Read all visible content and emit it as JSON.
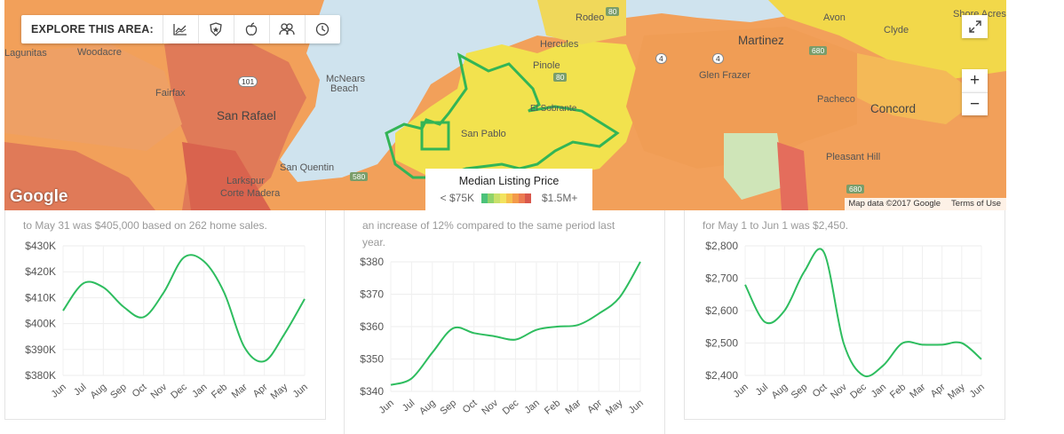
{
  "explore": {
    "label": "EXPLORE THIS AREA:",
    "icons": [
      "chart-icon",
      "police-badge-icon",
      "apple-icon",
      "people-icon",
      "clock-icon"
    ]
  },
  "map": {
    "zoom_in": "+",
    "zoom_out": "−",
    "places": {
      "rodeo": "Rodeo",
      "hercules": "Hercules",
      "pinole": "Pinole",
      "martinez": "Martinez",
      "avon": "Avon",
      "clyde": "Clyde",
      "shore_acres": "Shore Acres",
      "glen_frazer": "Glen Frazer",
      "pacheco": "Pacheco",
      "concord": "Concord",
      "pleasant_hill": "Pleasant Hill",
      "lagunitas": "Lagunitas",
      "woodacre": "Woodacre",
      "fairfax": "Fairfax",
      "san_rafael": "San Rafael",
      "mcnears": "McNears",
      "beach": "Beach",
      "san_quentin": "San Quentin",
      "larkspur": "Larkspur",
      "corte_madera": "Corte Madera",
      "san_pablo": "San Pablo",
      "el_sobrante": "El Sobrante"
    },
    "shields": {
      "s80a": "80",
      "s80b": "80",
      "s4a": "4",
      "s4b": "4",
      "s101": "101",
      "s680a": "680",
      "s680b": "680",
      "s580": "580"
    },
    "logo": "Google",
    "attribution": "Map data ©2017 Google",
    "terms": "Terms of Use",
    "legend": {
      "title": "Median Listing Price",
      "low": "< $75K",
      "high": "$1.5M+",
      "colors": [
        "#4cc27a",
        "#8fd36a",
        "#c9e06a",
        "#f2e35e",
        "#f6c04d",
        "#f39a4a",
        "#ec7b52",
        "#d9584c"
      ]
    }
  },
  "cards": [
    {
      "desc1": "to May 31 was $405,000 based on 262 home sales.",
      "desc2": "",
      "chart_data": {
        "type": "line",
        "categories": [
          "Jun",
          "Jul",
          "Aug",
          "Sep",
          "Oct",
          "Nov",
          "Dec",
          "Jan",
          "Feb",
          "Mar",
          "Apr",
          "May",
          "Jun"
        ],
        "values": [
          405000,
          415500,
          414000,
          406500,
          402500,
          412000,
          425500,
          424000,
          412000,
          391000,
          385500,
          396000,
          409500
        ],
        "yticks": [
          "$380K",
          "$390K",
          "$400K",
          "$410K",
          "$420K",
          "$430K"
        ],
        "ylim": [
          380000,
          430000
        ],
        "color": "#2ebd5f"
      }
    },
    {
      "desc1": "an increase of 12% compared to the same period last",
      "desc2": "year.",
      "chart_data": {
        "type": "line",
        "categories": [
          "Jun",
          "Jul",
          "Aug",
          "Sep",
          "Oct",
          "Nov",
          "Dec",
          "Jan",
          "Feb",
          "Mar",
          "Apr",
          "May",
          "Jun"
        ],
        "values": [
          342,
          344,
          352,
          359.5,
          358,
          357,
          356,
          359,
          360,
          360.5,
          364,
          369,
          380
        ],
        "yticks": [
          "$340",
          "$350",
          "$360",
          "$370",
          "$380"
        ],
        "ylim": [
          340,
          380
        ],
        "color": "#2ebd5f"
      }
    },
    {
      "desc1": "for May 1 to Jun 1 was $2,450.",
      "desc2": "",
      "chart_data": {
        "type": "line",
        "categories": [
          "Jun",
          "Jul",
          "Aug",
          "Sep",
          "Oct",
          "Nov",
          "Dec",
          "Jan",
          "Feb",
          "Mar",
          "Apr",
          "May",
          "Jun"
        ],
        "values": [
          2680,
          2565,
          2600,
          2720,
          2780,
          2500,
          2400,
          2430,
          2500,
          2495,
          2495,
          2500,
          2450
        ],
        "yticks": [
          "$2,400",
          "$2,500",
          "$2,600",
          "$2,700",
          "$2,800"
        ],
        "ylim": [
          2400,
          2800
        ],
        "color": "#2ebd5f"
      }
    }
  ]
}
